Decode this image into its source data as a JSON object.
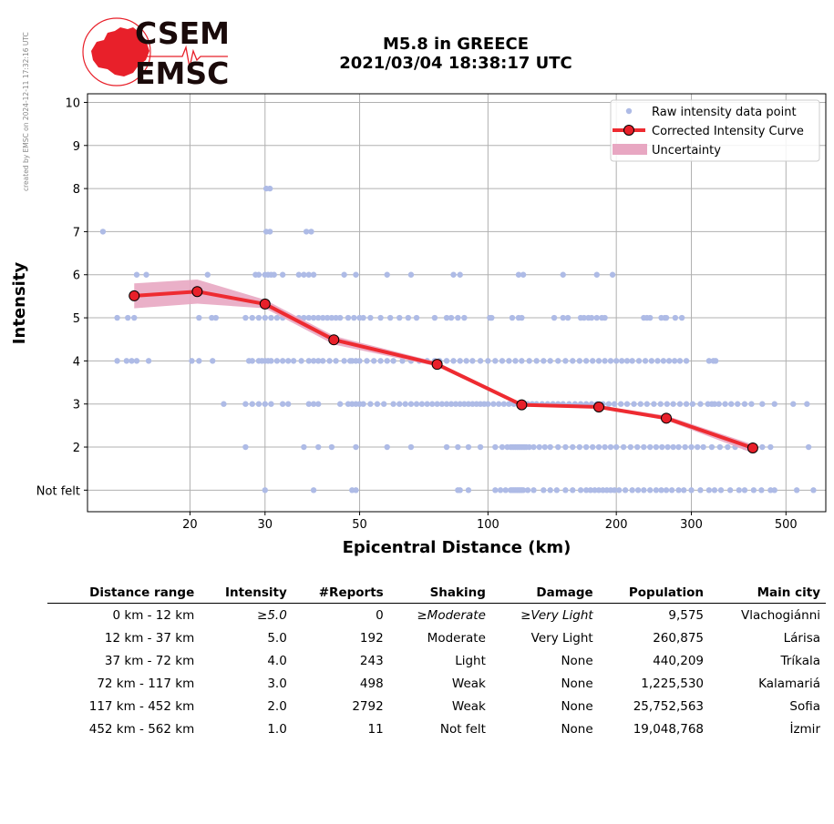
{
  "side_note": "created by EMSC on 2024-12-11 17:32:16 UTC",
  "logo": {
    "line1": "CSEM",
    "line2": "EMSC"
  },
  "title": {
    "line1": "M5.8 in GREECE",
    "line2": "2021/03/04 18:38:17 UTC"
  },
  "colors": {
    "raw": "#aebbe6",
    "curve": "#ee2b31",
    "marker": "#e8202a",
    "band": "#e8a7c2",
    "grid": "#b0b0b0"
  },
  "chart_data": {
    "type": "scatter",
    "title": "M5.8 in GREECE 2021/03/04 18:38:17 UTC",
    "xlabel": "Epicentral Distance (km)",
    "ylabel": "Intensity",
    "xscale": "log",
    "xlim": [
      11.5,
      620
    ],
    "ylim": [
      0.5,
      10.2
    ],
    "x_ticks": [
      20,
      30,
      50,
      100,
      200,
      300,
      500
    ],
    "y_ticks": [
      1,
      2,
      3,
      4,
      5,
      6,
      7,
      8,
      9,
      10
    ],
    "y_tick_labels": [
      "Not felt",
      "2",
      "3",
      "4",
      "5",
      "6",
      "7",
      "8",
      "9",
      "10"
    ],
    "grid": true,
    "legend": {
      "position": "top-right",
      "entries": [
        "Raw intensity data point",
        "Corrected Intensity Curve",
        "Uncertainty"
      ]
    },
    "corrected_curve": {
      "x": [
        14.8,
        20.8,
        30,
        43.5,
        76,
        120,
        182,
        262,
        418
      ],
      "y": [
        5.51,
        5.61,
        5.32,
        4.49,
        3.92,
        2.98,
        2.93,
        2.67,
        1.98
      ]
    },
    "uncertainty": {
      "x": [
        14.8,
        20.8,
        30,
        43.5,
        76,
        120,
        182,
        262,
        418
      ],
      "lower": [
        5.22,
        5.33,
        5.22,
        4.38,
        3.87,
        2.95,
        2.9,
        2.62,
        1.86
      ],
      "upper": [
        5.8,
        5.89,
        5.42,
        4.58,
        3.97,
        3.02,
        2.97,
        2.73,
        2.06
      ]
    },
    "raw_points": {
      "1": [
        30,
        39,
        48,
        49,
        85,
        86,
        90,
        104,
        107,
        110,
        113,
        114,
        115,
        116,
        117,
        118,
        119,
        120,
        121,
        124,
        128,
        135,
        140,
        145,
        152,
        158,
        165,
        170,
        174,
        178,
        182,
        186,
        190,
        194,
        198,
        203,
        210,
        218,
        225,
        232,
        240,
        248,
        255,
        262,
        270,
        280,
        288,
        300,
        315,
        330,
        340,
        352,
        370,
        388,
        400,
        420,
        438,
        460,
        470,
        530,
        580
      ],
      "2": [
        27,
        37,
        40,
        43,
        49,
        58,
        66,
        80,
        85,
        90,
        96,
        104,
        108,
        111,
        113,
        114,
        115,
        116,
        117,
        118,
        119,
        120,
        121,
        122,
        123,
        125,
        128,
        132,
        136,
        140,
        146,
        152,
        158,
        164,
        170,
        176,
        182,
        188,
        194,
        200,
        208,
        216,
        224,
        232,
        240,
        248,
        256,
        264,
        272,
        280,
        290,
        300,
        310,
        320,
        335,
        350,
        365,
        380,
        400,
        420,
        440,
        460,
        565
      ],
      "3": [
        24,
        27,
        28,
        29,
        30,
        31,
        33,
        34,
        38,
        39,
        40,
        45,
        47,
        48,
        49,
        50,
        51,
        53,
        55,
        57,
        60,
        62,
        64,
        66,
        68,
        70,
        72,
        74,
        76,
        78,
        80,
        82,
        84,
        86,
        88,
        90,
        92,
        94,
        96,
        98,
        100,
        103,
        106,
        109,
        112,
        115,
        118,
        121,
        124,
        127,
        130,
        134,
        138,
        142,
        146,
        150,
        155,
        160,
        165,
        170,
        175,
        180,
        186,
        192,
        198,
        205,
        212,
        220,
        228,
        236,
        245,
        254,
        263,
        272,
        282,
        292,
        302,
        315,
        328,
        335,
        340,
        348,
        360,
        372,
        385,
        400,
        415,
        440,
        470,
        520,
        560
      ],
      "4": [
        13.5,
        14.2,
        14.6,
        15,
        16,
        20.2,
        21,
        22.6,
        27.5,
        28,
        29,
        29.5,
        30,
        30.5,
        31,
        32,
        33,
        34,
        35,
        36.5,
        38,
        39,
        40,
        41,
        42.5,
        44,
        46,
        47.5,
        48,
        49,
        50,
        52,
        54,
        56,
        58,
        60,
        63,
        66,
        69,
        72,
        75,
        77,
        80,
        83,
        86,
        89,
        92,
        96,
        100,
        104,
        108,
        112,
        116,
        120,
        125,
        130,
        135,
        140,
        146,
        152,
        158,
        164,
        170,
        176,
        182,
        188,
        194,
        200,
        206,
        212,
        218,
        226,
        234,
        242,
        250,
        258,
        266,
        274,
        282,
        292,
        330,
        338,
        342
      ],
      "5": [
        13.5,
        14.3,
        14.8,
        21,
        22.5,
        23,
        27,
        28,
        29,
        30,
        31,
        32,
        33,
        36,
        37,
        38,
        39,
        40,
        41,
        42,
        43,
        44,
        45,
        47,
        48.5,
        50,
        51,
        53,
        56,
        59,
        62,
        65,
        68,
        75,
        80,
        82,
        85,
        88,
        101,
        102,
        114,
        118,
        120,
        143,
        150,
        154,
        165,
        168,
        172,
        175,
        180,
        185,
        188,
        232,
        236,
        240,
        255,
        260,
        262,
        275,
        285
      ],
      "6": [
        15,
        15.8,
        22,
        28.5,
        29,
        30,
        30.5,
        31,
        31.5,
        33,
        36,
        37,
        38,
        39,
        46,
        49,
        58,
        66,
        83,
        86,
        118,
        121,
        150,
        180,
        196
      ],
      "7": [
        12.5,
        30.2,
        30.8,
        37.5,
        38.5
      ],
      "8": [
        30.2,
        30.8
      ]
    }
  },
  "table": {
    "headers": [
      "Distance range",
      "Intensity",
      "#Reports",
      "Shaking",
      "Damage",
      "Population",
      "Main city"
    ],
    "rows": [
      [
        "0 km -   12 km",
        "≥5.0",
        "0",
        "≥Moderate",
        "≥Very Light",
        "9,575",
        "Vlachogiánni"
      ],
      [
        "12 km -   37 km",
        "5.0",
        "192",
        "Moderate",
        "Very Light",
        "260,875",
        "Lárisa"
      ],
      [
        "37 km -   72 km",
        "4.0",
        "243",
        "Light",
        "None",
        "440,209",
        "Tríkala"
      ],
      [
        "72 km -  117 km",
        "3.0",
        "498",
        "Weak",
        "None",
        "1,225,530",
        "Kalamariá"
      ],
      [
        "117 km -  452 km",
        "2.0",
        "2792",
        "Weak",
        "None",
        "25,752,563",
        "Sofia"
      ],
      [
        "452 km -  562 km",
        "1.0",
        "11",
        "Not felt",
        "None",
        "19,048,768",
        "İzmir"
      ]
    ]
  }
}
